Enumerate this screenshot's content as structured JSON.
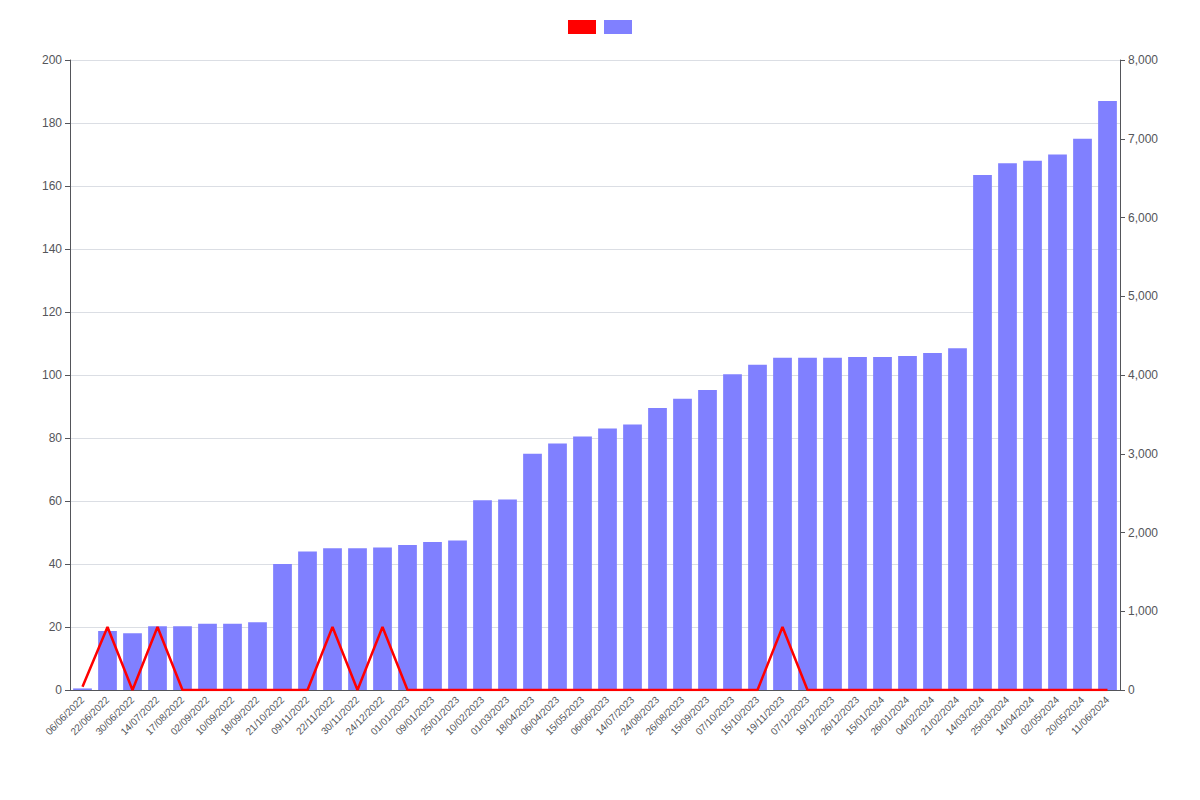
{
  "chart_data": {
    "type": "bar",
    "categories": [
      "06/06/2022",
      "22/06/2022",
      "30/06/2022",
      "14/07/2022",
      "17/08/2022",
      "02/09/2022",
      "10/09/2022",
      "18/09/2022",
      "21/10/2022",
      "09/11/2022",
      "22/11/2022",
      "30/11/2022",
      "24/12/2022",
      "01/01/2023",
      "09/01/2023",
      "25/01/2023",
      "10/02/2023",
      "01/03/2023",
      "18/04/2023",
      "06/04/2023",
      "15/05/2023",
      "06/06/2023",
      "14/07/2023",
      "24/08/2023",
      "26/08/2023",
      "15/09/2023",
      "07/10/2023",
      "15/10/2023",
      "19/11/2023",
      "07/12/2023",
      "19/12/2023",
      "26/12/2023",
      "15/01/2024",
      "26/01/2024",
      "04/02/2024",
      "21/02/2024",
      "14/03/2024",
      "25/03/2024",
      "14/04/2024",
      "02/05/2024",
      "20/05/2024",
      "11/06/2024"
    ],
    "series": [
      {
        "type": "bar",
        "axis": "y2",
        "color": "#8080ff",
        "values": [
          20,
          750,
          720,
          810,
          810,
          840,
          840,
          860,
          1600,
          1760,
          1800,
          1800,
          1810,
          1840,
          1880,
          1900,
          2410,
          2420,
          3000,
          3130,
          3220,
          3320,
          3370,
          3580,
          3700,
          3810,
          4010,
          4130,
          4220,
          4220,
          4220,
          4230,
          4230,
          4240,
          4280,
          4340,
          6540,
          6690,
          6720,
          6800,
          7000,
          7480
        ]
      },
      {
        "type": "line",
        "color": "#ff0000",
        "values": [
          1,
          20,
          0,
          20,
          0,
          0,
          0,
          0,
          0,
          0,
          20,
          0,
          20,
          0,
          0,
          0,
          0,
          0,
          0,
          0,
          0,
          0,
          0,
          0,
          0,
          0,
          0,
          0,
          20,
          0,
          0,
          0,
          0,
          0,
          0,
          0,
          0,
          0,
          0,
          0,
          0,
          0
        ]
      }
    ],
    "ylim": [
      0,
      200
    ],
    "yticks": [
      0,
      20,
      40,
      60,
      80,
      100,
      120,
      140,
      160,
      180,
      200
    ],
    "y2lim": [
      0,
      8000
    ],
    "y2ticks": [
      0,
      1000,
      2000,
      3000,
      4000,
      5000,
      6000,
      7000,
      8000
    ],
    "grid": true,
    "legend": "top"
  }
}
